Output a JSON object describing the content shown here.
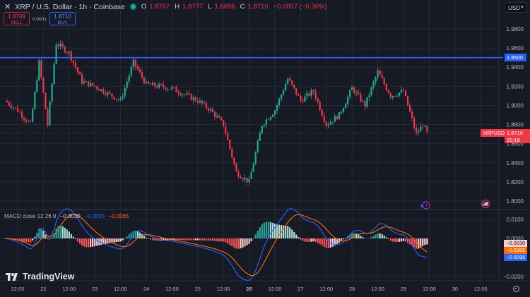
{
  "header": {
    "close_symbol": "✕",
    "title": "XRP / U.S. Dollar · 1h · Coinbase",
    "market_status": "open",
    "ohlc": [
      {
        "key": "O",
        "value": "1.8767"
      },
      {
        "key": "H",
        "value": "1.8777"
      },
      {
        "key": "L",
        "value": "1.8696"
      },
      {
        "key": "C",
        "value": "1.8710"
      }
    ],
    "change": "−0.0057 (−0.30%)"
  },
  "trade": {
    "sell_price": "1.8709",
    "sell_label": "SELL",
    "spread": "0.0001",
    "buy_price": "1.8710",
    "buy_label": "BUY"
  },
  "currency_select": {
    "value": "USD"
  },
  "price_axis": {
    "labels": [
      "1.9800",
      "1.9600",
      "1.9400",
      "1.9200",
      "1.9000",
      "1.8800",
      "1.8600",
      "1.8400",
      "1.8200",
      "1.8000"
    ],
    "horizontal_line_label": "1.9500",
    "symbol_tag": "XRPUSD",
    "last_price": "1.8710",
    "countdown": "20:18"
  },
  "macd": {
    "legend_name": "MACD close 12 26 9",
    "histogram_value": "−0.0030",
    "macd_value": "−0.0095",
    "signal_value": "−0.0065",
    "axis_labels": [
      "0.0100",
      "0.0000",
      "−0.0200"
    ],
    "tags": [
      {
        "value": "−0.0030",
        "bg": "#f8cfd3",
        "fg": "#131722"
      },
      {
        "value": "−0.0065",
        "bg": "#ff6d00",
        "fg": "#ffffff"
      },
      {
        "value": "−0.0095",
        "bg": "#2962ff",
        "fg": "#ffffff"
      }
    ]
  },
  "time_axis": {
    "labels": [
      "12:00",
      "22",
      "12:00",
      "23",
      "12:00",
      "24",
      "12:00",
      "25",
      "12:00",
      "26",
      "12:00",
      "27",
      "12:00",
      "28",
      "12:00",
      "29",
      "12:00",
      "30",
      "12:00"
    ]
  },
  "branding": {
    "logo_text": "TradingView"
  },
  "colors": {
    "background": "#161a25",
    "grid": "#252936",
    "up": "#22ab94",
    "down": "#f23645",
    "hline": "#2962ff",
    "macd_line": "#2962ff",
    "signal_line": "#ff6d00"
  },
  "chart_data": [
    {
      "type": "candlestick",
      "title": "XRP / U.S. Dollar · 1h · Coinbase",
      "xlabel": "",
      "ylabel": "USD",
      "ylim": [
        1.79,
        2.0
      ],
      "x_ticks": [
        "21 12:00",
        "22",
        "22 12:00",
        "23",
        "23 12:00",
        "24",
        "24 12:00",
        "25",
        "25 12:00",
        "26",
        "26 12:00",
        "27",
        "27 12:00",
        "28",
        "28 12:00",
        "29",
        "29 12:00",
        "30",
        "30 12:00"
      ],
      "horizontal_line": 1.95,
      "last_price": 1.871,
      "approx_close_path": [
        {
          "t": "21 06:00",
          "close": 1.905
        },
        {
          "t": "21 12:00",
          "close": 1.895
        },
        {
          "t": "21 18:00",
          "close": 1.88
        },
        {
          "t": "21 22:00",
          "close": 1.945
        },
        {
          "t": "22 02:00",
          "close": 1.88
        },
        {
          "t": "22 06:00",
          "close": 1.965
        },
        {
          "t": "22 12:00",
          "close": 1.955
        },
        {
          "t": "22 18:00",
          "close": 1.925
        },
        {
          "t": "23 00:00",
          "close": 1.92
        },
        {
          "t": "23 12:00",
          "close": 1.905
        },
        {
          "t": "23 18:00",
          "close": 1.945
        },
        {
          "t": "24 00:00",
          "close": 1.922
        },
        {
          "t": "24 12:00",
          "close": 1.918
        },
        {
          "t": "25 00:00",
          "close": 1.905
        },
        {
          "t": "25 06:00",
          "close": 1.895
        },
        {
          "t": "25 12:00",
          "close": 1.88
        },
        {
          "t": "25 18:00",
          "close": 1.83
        },
        {
          "t": "26 00:00",
          "close": 1.82
        },
        {
          "t": "26 06:00",
          "close": 1.88
        },
        {
          "t": "26 12:00",
          "close": 1.895
        },
        {
          "t": "26 18:00",
          "close": 1.928
        },
        {
          "t": "27 00:00",
          "close": 1.905
        },
        {
          "t": "27 06:00",
          "close": 1.915
        },
        {
          "t": "27 12:00",
          "close": 1.88
        },
        {
          "t": "27 18:00",
          "close": 1.89
        },
        {
          "t": "28 00:00",
          "close": 1.918
        },
        {
          "t": "28 06:00",
          "close": 1.9
        },
        {
          "t": "28 12:00",
          "close": 1.935
        },
        {
          "t": "28 18:00",
          "close": 1.91
        },
        {
          "t": "29 00:00",
          "close": 1.915
        },
        {
          "t": "29 06:00",
          "close": 1.87
        },
        {
          "t": "29 09:00",
          "close": 1.88
        },
        {
          "t": "29 11:00",
          "close": 1.871
        }
      ]
    },
    {
      "type": "line",
      "title": "MACD close 12 26 9",
      "ylim": [
        -0.025,
        0.012
      ],
      "series": [
        {
          "name": "Histogram",
          "last": -0.003
        },
        {
          "name": "MACD",
          "last": -0.0095
        },
        {
          "name": "Signal",
          "last": -0.0065
        }
      ],
      "y_ticks": [
        0.01,
        0.0,
        -0.02
      ]
    }
  ]
}
